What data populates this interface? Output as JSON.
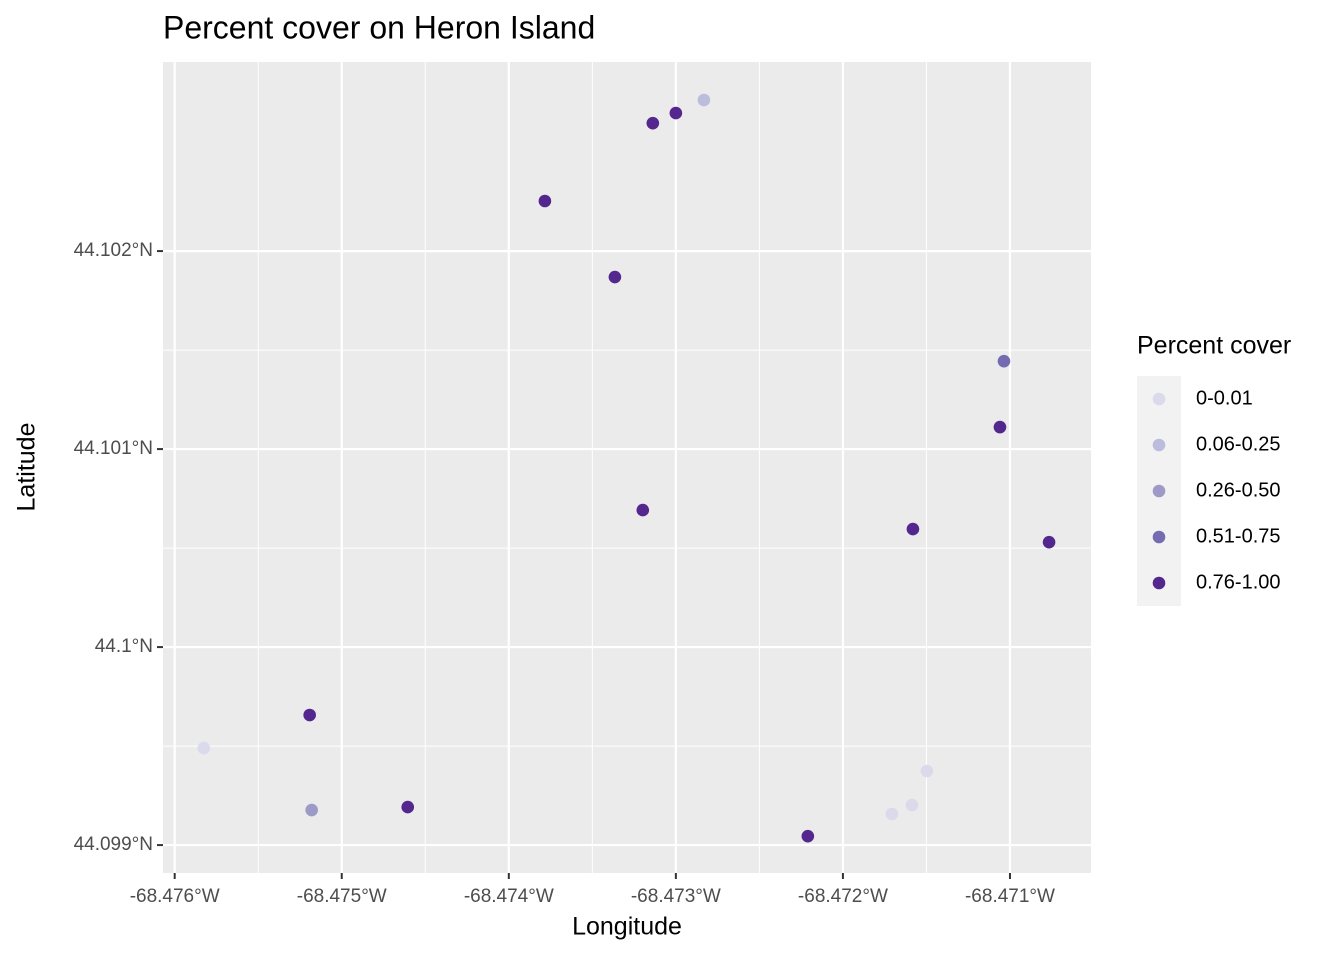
{
  "chart_data": {
    "type": "scatter",
    "title": "Percent cover on Heron Island",
    "x_label": "Longitude",
    "y_label": "Latitude",
    "legend_title": "Percent cover",
    "xlim": [
      -68.47607,
      -68.470515
    ],
    "ylim": [
      44.098859,
      44.102955
    ],
    "xticks": [
      {
        "value": -68.476,
        "label": "-68.476°W"
      },
      {
        "value": -68.475,
        "label": "-68.475°W"
      },
      {
        "value": -68.474,
        "label": "-68.474°W"
      },
      {
        "value": -68.473,
        "label": "-68.473°W"
      },
      {
        "value": -68.472,
        "label": "-68.472°W"
      },
      {
        "value": -68.471,
        "label": "-68.471°W"
      }
    ],
    "yticks": [
      {
        "value": 44.099,
        "label": "44.099°N"
      },
      {
        "value": 44.1,
        "label": "44.1°N"
      },
      {
        "value": 44.101,
        "label": "44.101°N"
      },
      {
        "value": 44.102,
        "label": "44.102°N"
      }
    ],
    "grid": true,
    "legend_position": "right",
    "series": [
      {
        "name": "0-0.01",
        "color": "#dadaeb",
        "x": [
          -68.475826,
          -68.471707,
          -68.471587,
          -68.471497
        ],
        "values": [
          44.09949,
          44.099157,
          44.099202,
          44.099374
        ]
      },
      {
        "name": "0.06-0.25",
        "color": "#bcbddc",
        "x": [
          -68.472832
        ],
        "values": [
          44.102763
        ]
      },
      {
        "name": "0.26-0.50",
        "color": "#9e9ac8",
        "x": [
          -68.47518
        ],
        "values": [
          44.099177
        ]
      },
      {
        "name": "0.51-0.75",
        "color": "#756bb1",
        "x": [
          -68.471036
        ],
        "values": [
          44.101444
        ]
      },
      {
        "name": "0.76-1.00",
        "color": "#54278f",
        "x": [
          -68.473138,
          -68.473,
          -68.473784,
          -68.473365,
          -68.47106,
          -68.473198,
          -68.471581,
          -68.470766,
          -68.475192,
          -68.474605,
          -68.47221
        ],
        "values": [
          44.102646,
          44.102697,
          44.102253,
          44.101869,
          44.101111,
          44.100692,
          44.100596,
          44.10053,
          44.099657,
          44.099192,
          44.099045
        ]
      }
    ]
  }
}
